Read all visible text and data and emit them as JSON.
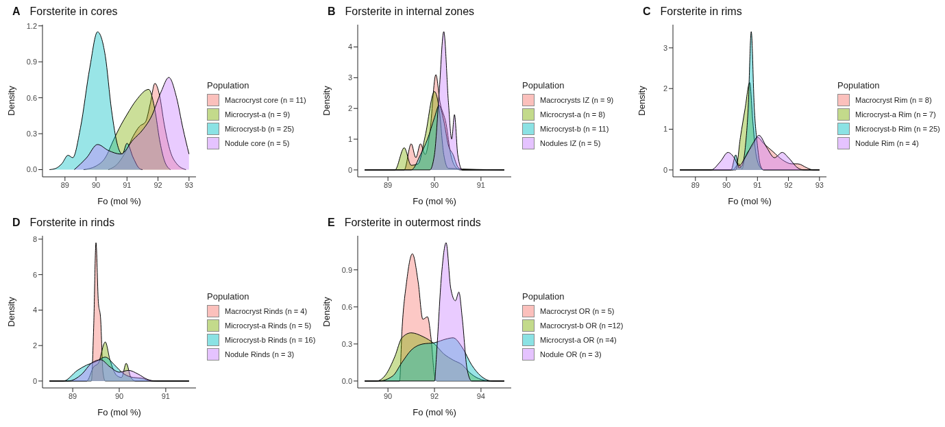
{
  "chart_data": [
    {
      "type": "area",
      "title": "Forsterite in cores",
      "annotations": [
        "A"
      ],
      "xlabel": "Fo (mol %)",
      "ylabel": "Density",
      "legend_title": "Population",
      "legend": "right",
      "xlim": [
        88.275,
        93.225
      ],
      "xticks": [
        89,
        90,
        91,
        92,
        93
      ],
      "ylim": [
        -0.06,
        1.21
      ],
      "yticks": [
        {
          "value": 0,
          "label": "0.0"
        },
        0.3,
        0.6,
        0.9,
        1.2
      ],
      "series": [
        {
          "name": "Macrocryst core (n = 11)",
          "color": "#f8766d",
          "x": [
            90.4,
            90.7,
            91.0,
            91.2,
            91.4,
            91.6,
            91.75,
            91.9,
            92.05,
            92.2,
            92.4,
            92.6,
            92.9
          ],
          "values": [
            0,
            0.05,
            0.17,
            0.28,
            0.36,
            0.4,
            0.55,
            0.72,
            0.62,
            0.38,
            0.15,
            0.05,
            0
          ]
        },
        {
          "name": "Microcryst-a (n = 9)",
          "color": "#7cae00",
          "x": [
            89.6,
            90.0,
            90.3,
            90.57,
            90.8,
            91.0,
            91.3,
            91.7,
            91.9,
            92.05,
            92.2,
            92.4
          ],
          "values": [
            0,
            0.03,
            0.1,
            0.25,
            0.37,
            0.46,
            0.58,
            0.67,
            0.5,
            0.25,
            0.08,
            0
          ]
        },
        {
          "name": "Microcryst-b (n = 25)",
          "color": "#00bfc4",
          "x": [
            88.5,
            88.7,
            88.9,
            89.1,
            89.25,
            89.5,
            89.8,
            90.05,
            90.3,
            90.5,
            90.7,
            90.85,
            91.0,
            91.2,
            91.4,
            91.5
          ],
          "values": [
            0,
            0.01,
            0.05,
            0.12,
            0.1,
            0.35,
            0.85,
            1.15,
            0.95,
            0.5,
            0.2,
            0.13,
            0.22,
            0.1,
            0.01,
            0
          ]
        },
        {
          "name": "Nodule core (n = 5)",
          "color": "#c77cff",
          "x": [
            89.3,
            89.7,
            90.05,
            90.4,
            90.8,
            91.2,
            91.5,
            91.8,
            92.1,
            92.35,
            92.6,
            92.8,
            93.0
          ],
          "values": [
            0,
            0.1,
            0.21,
            0.16,
            0.13,
            0.25,
            0.33,
            0.45,
            0.65,
            0.77,
            0.6,
            0.35,
            0.13
          ]
        }
      ]
    },
    {
      "type": "area",
      "title": "Forsterite in internal zones",
      "annotations": [
        "B"
      ],
      "xlabel": "Fo (mol %)",
      "ylabel": "Density",
      "legend_title": "Population",
      "legend": "right",
      "xlim": [
        88.35,
        91.65
      ],
      "xticks": [
        89,
        90,
        91
      ],
      "ylim": [
        -0.225,
        4.725
      ],
      "yticks": [
        0,
        1,
        2,
        3,
        4
      ],
      "series": [
        {
          "name": "Macrocrysts IZ (n = 9)",
          "color": "#f8766d",
          "x": [
            88.5,
            89.35,
            89.5,
            89.6,
            89.7,
            89.8,
            89.9,
            90.03,
            90.12,
            90.25,
            90.35,
            90.45,
            90.55,
            91.5
          ],
          "values": [
            0,
            0,
            0.85,
            0.4,
            0.85,
            0.5,
            1.2,
            3.1,
            2.2,
            1.5,
            0.5,
            0.1,
            0,
            0
          ]
        },
        {
          "name": "Microcryst-a (n = 8)",
          "color": "#7cae00",
          "x": [
            88.5,
            89.15,
            89.35,
            89.5,
            89.65,
            89.8,
            90.0,
            90.1,
            90.2,
            90.3,
            91.5
          ],
          "values": [
            0,
            0,
            0.72,
            0.15,
            0.2,
            1.1,
            2.55,
            2.0,
            0.5,
            0.05,
            0
          ]
        },
        {
          "name": "Microcryst-b (n = 11)",
          "color": "#00bfc4",
          "x": [
            88.5,
            89.5,
            89.7,
            89.85,
            90.0,
            90.1,
            90.2,
            90.3,
            90.4,
            90.5,
            90.6,
            91.5
          ],
          "values": [
            0,
            0,
            0.5,
            1.0,
            1.7,
            2.1,
            1.6,
            0.8,
            0.5,
            0.1,
            0,
            0
          ]
        },
        {
          "name": "Nodules IZ (n = 5)",
          "color": "#c77cff",
          "x": [
            88.5,
            89.9,
            90.0,
            90.1,
            90.2,
            90.3,
            90.37,
            90.43,
            90.5,
            90.6,
            91.5
          ],
          "values": [
            0,
            0,
            0.5,
            2.5,
            4.5,
            2.2,
            1.0,
            1.8,
            0.5,
            0,
            0
          ]
        }
      ]
    },
    {
      "type": "area",
      "title": "Forsterite in rims",
      "annotations": [
        "C"
      ],
      "xlabel": "Fo (mol %)",
      "ylabel": "Density",
      "legend_title": "Population",
      "legend": "right",
      "xlim": [
        88.275,
        93.225
      ],
      "xticks": [
        89,
        90,
        91,
        92,
        93
      ],
      "ylim": [
        -0.17,
        3.57
      ],
      "yticks": [
        0,
        1,
        2,
        3
      ],
      "series": [
        {
          "name": "Macrocryst Rim (n = 8)",
          "color": "#f8766d",
          "x": [
            88.5,
            90.2,
            90.4,
            90.5,
            90.6,
            90.85,
            91.0,
            91.2,
            91.5,
            91.8,
            92.1,
            92.3,
            92.6,
            92.8,
            93.0
          ],
          "values": [
            0,
            0,
            0.15,
            0.02,
            0.3,
            0.6,
            0.8,
            0.65,
            0.45,
            0.25,
            0.15,
            0.15,
            0.05,
            0,
            0
          ]
        },
        {
          "name": "Microcryst-a Rim (n = 7)",
          "color": "#7cae00",
          "x": [
            88.5,
            90.3,
            90.45,
            90.6,
            90.75,
            90.85,
            90.95,
            91.1,
            91.2,
            93.0
          ],
          "values": [
            0,
            0,
            0.8,
            1.5,
            2.15,
            1.2,
            0.4,
            0.05,
            0,
            0
          ]
        },
        {
          "name": "Microcryst-b Rim (n = 25)",
          "color": "#00bfc4",
          "x": [
            88.5,
            90.15,
            90.3,
            90.4,
            90.5,
            90.6,
            90.7,
            90.8,
            90.9,
            91.0,
            91.1,
            91.2,
            93.0
          ],
          "values": [
            0,
            0,
            0.37,
            0.05,
            0.1,
            0.5,
            1.5,
            3.4,
            1.5,
            0.6,
            0.1,
            0,
            0
          ]
        },
        {
          "name": "Nodule Rim (n = 4)",
          "color": "#c77cff",
          "x": [
            88.5,
            89.5,
            89.8,
            90.05,
            90.25,
            90.4,
            90.6,
            90.85,
            91.05,
            91.3,
            91.55,
            91.8,
            92.0,
            92.3,
            92.5,
            93.0
          ],
          "values": [
            0,
            0,
            0.2,
            0.43,
            0.3,
            0.1,
            0.3,
            0.65,
            0.85,
            0.55,
            0.3,
            0.43,
            0.3,
            0.05,
            0,
            0
          ]
        }
      ]
    },
    {
      "type": "area",
      "title": "Forsterite in rinds",
      "annotations": [
        "D"
      ],
      "xlabel": "Fo (mol %)",
      "ylabel": "Density",
      "legend_title": "Population",
      "legend": "right",
      "xlim": [
        88.35,
        91.65
      ],
      "xticks": [
        89,
        90,
        91
      ],
      "ylim": [
        -0.39,
        8.19
      ],
      "yticks": [
        0,
        2,
        4,
        6,
        8
      ],
      "series": [
        {
          "name": "Macrocryst Rinds (n = 4)",
          "color": "#f8766d",
          "x": [
            88.5,
            89.4,
            89.45,
            89.5,
            89.55,
            89.6,
            89.65,
            89.7,
            91.5
          ],
          "values": [
            0,
            0,
            3,
            7.8,
            4.5,
            3.5,
            0.5,
            0,
            0
          ]
        },
        {
          "name": "Microcryst-a Rinds (n = 5)",
          "color": "#7cae00",
          "x": [
            88.5,
            89.3,
            89.45,
            89.55,
            89.7,
            89.8,
            89.95,
            90.05,
            90.15,
            90.25,
            90.35,
            91.5
          ],
          "values": [
            0,
            0,
            0.8,
            1.0,
            2.2,
            1.2,
            0.3,
            0.2,
            1.0,
            0.2,
            0,
            0
          ]
        },
        {
          "name": "Microcryst-b Rinds (n = 16)",
          "color": "#00bfc4",
          "x": [
            88.5,
            88.8,
            89.1,
            89.3,
            89.5,
            89.7,
            89.9,
            90.1,
            90.3,
            90.5,
            90.7,
            91.5
          ],
          "values": [
            0,
            0,
            0.6,
            0.9,
            1.1,
            1.35,
            0.9,
            0.4,
            0.2,
            0.15,
            0,
            0
          ]
        },
        {
          "name": "Nodule Rinds (n = 3)",
          "color": "#c77cff",
          "x": [
            88.5,
            88.9,
            89.2,
            89.4,
            89.6,
            89.8,
            90.0,
            90.2,
            90.4,
            90.6,
            90.8,
            91.5
          ],
          "values": [
            0,
            0,
            0.4,
            1.0,
            1.2,
            0.8,
            0.5,
            0.6,
            0.4,
            0.1,
            0,
            0
          ]
        }
      ]
    },
    {
      "type": "area",
      "title": "Forsterite in outermost rinds",
      "annotations": [
        "E"
      ],
      "xlabel": "Fo (mol %)",
      "ylabel": "Density",
      "legend_title": "Population",
      "legend": "right",
      "xlim": [
        88.7,
        95.3
      ],
      "xticks": [
        90,
        92,
        94
      ],
      "ylim": [
        -0.056,
        1.176
      ],
      "yticks": [
        {
          "value": 0,
          "label": "0.0"
        },
        0.3,
        0.6,
        0.9
      ],
      "series": [
        {
          "name": "Macrocryst OR (n = 5)",
          "color": "#f8766d",
          "x": [
            89.0,
            90.5,
            90.6,
            90.8,
            91.05,
            91.3,
            91.5,
            91.7,
            91.85,
            92.0,
            92.1,
            95.0
          ],
          "values": [
            0,
            0,
            0.4,
            0.8,
            1.03,
            0.8,
            0.5,
            0.52,
            0.35,
            0.05,
            0,
            0
          ]
        },
        {
          "name": "Macrocryst-b OR (n =12)",
          "color": "#7cae00",
          "x": [
            89.0,
            89.5,
            89.9,
            90.3,
            90.6,
            91.0,
            91.5,
            92.0,
            92.4,
            92.8,
            93.2,
            93.5,
            93.9,
            94.4,
            95.0
          ],
          "values": [
            0,
            0,
            0.05,
            0.2,
            0.35,
            0.39,
            0.36,
            0.3,
            0.22,
            0.17,
            0.13,
            0.07,
            0.02,
            0,
            0
          ]
        },
        {
          "name": "Microcryst-a OR (n =4)",
          "color": "#00bfc4",
          "x": [
            89.0,
            89.6,
            90.2,
            90.6,
            91.0,
            91.5,
            92.0,
            92.5,
            92.8,
            93.2,
            93.6,
            94.0,
            94.5,
            95.0
          ],
          "values": [
            0,
            0,
            0.04,
            0.15,
            0.25,
            0.3,
            0.31,
            0.34,
            0.35,
            0.27,
            0.13,
            0.04,
            0,
            0
          ]
        },
        {
          "name": "Nodule OR (n = 3)",
          "color": "#c77cff",
          "x": [
            89.0,
            92.0,
            92.1,
            92.3,
            92.5,
            92.7,
            92.9,
            93.05,
            93.2,
            93.4,
            93.6,
            95.0
          ],
          "values": [
            0,
            0,
            0.25,
            0.85,
            1.12,
            0.75,
            0.65,
            0.72,
            0.5,
            0.1,
            0,
            0
          ]
        }
      ]
    }
  ]
}
